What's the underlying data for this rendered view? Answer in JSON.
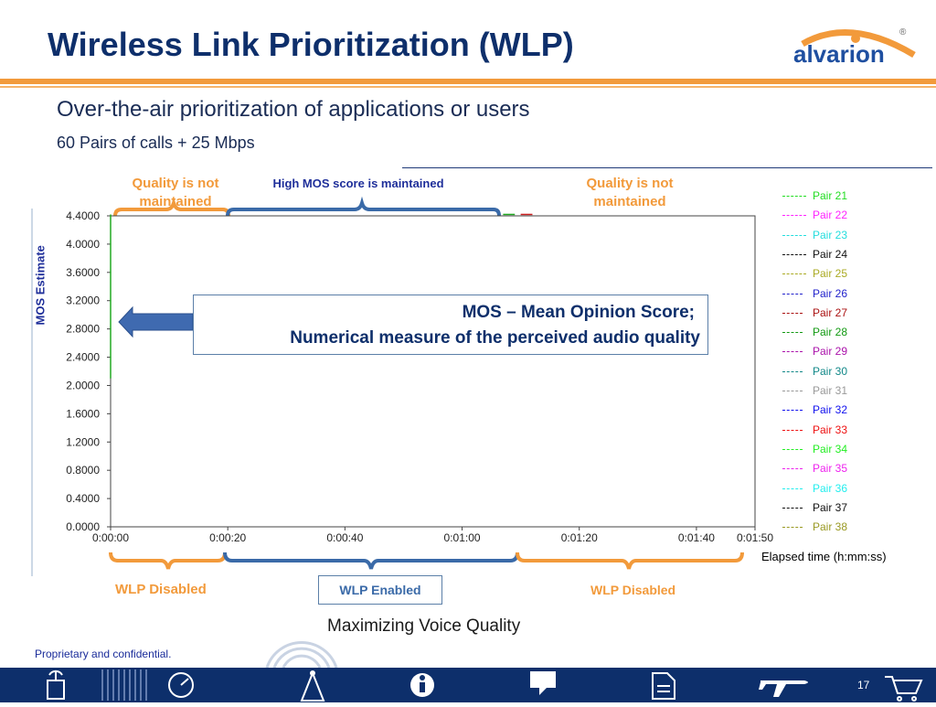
{
  "slide": {
    "title": "Wireless Link Prioritization (WLP)",
    "subtitle": "Over-the-air prioritization of applications or users",
    "subline": "60 Pairs of calls + 25 Mbps",
    "logo_text": "alvarion",
    "logo_mark": "®",
    "caption": "Maximizing Voice Quality",
    "proprietary": "Proprietary and confidential.",
    "page_number": "17",
    "brand_color": "#0e2f6b",
    "accent_color": "#f29a3b"
  },
  "annotations": {
    "quality_left": [
      "Quality is not",
      "maintained"
    ],
    "quality_right": [
      "Quality is not",
      "maintained"
    ],
    "high_mos": "High MOS score is maintained",
    "callout_line1": "MOS – Mean Opinion Score;",
    "callout_line2": "Numerical measure of the perceived audio quality",
    "wlp_disabled_left": "WLP Disabled",
    "wlp_enabled": "WLP Enabled",
    "wlp_disabled_right": "WLP Disabled"
  },
  "footer_icons": [
    "wifi-tower-icon",
    "stripes-icon",
    "gauge-icon",
    "antenna-icon",
    "info-icon",
    "chat-bubble-icon",
    "document-icon",
    "airplane-icon",
    "cart-icon"
  ],
  "chart_data": {
    "type": "line",
    "ylabel": "MOS Estimate",
    "xlabel": "Elapsed time (h:mm:ss)",
    "ylim": [
      0,
      4.4
    ],
    "xlim_seconds": [
      0,
      110
    ],
    "y_ticks": [
      "0.0000",
      "0.4000",
      "0.8000",
      "1.2000",
      "1.6000",
      "2.0000",
      "2.4000",
      "2.8000",
      "3.2000",
      "3.6000",
      "4.0000",
      "4.4000"
    ],
    "x_ticks": [
      "0:00:00",
      "0:00:20",
      "0:00:40",
      "0:01:00",
      "0:01:20",
      "0:01:40",
      "0:01:50"
    ],
    "grid": false,
    "legend_position": "right",
    "series": [
      {
        "name": "Pair 21",
        "color": "#22dd22",
        "dash": "dashed"
      },
      {
        "name": "Pair 22",
        "color": "#ff22ff",
        "dash": "dashed"
      },
      {
        "name": "Pair 23",
        "color": "#22dddd",
        "dash": "dashed"
      },
      {
        "name": "Pair 24",
        "color": "#111111",
        "dash": "dashed"
      },
      {
        "name": "Pair 25",
        "color": "#aaaa22",
        "dash": "dashed"
      },
      {
        "name": "Pair 26",
        "color": "#2222cc",
        "dash": "longdash"
      },
      {
        "name": "Pair 27",
        "color": "#aa1111",
        "dash": "longdash"
      },
      {
        "name": "Pair 28",
        "color": "#119911",
        "dash": "longdash"
      },
      {
        "name": "Pair 29",
        "color": "#aa11aa",
        "dash": "longdash"
      },
      {
        "name": "Pair 30",
        "color": "#118888",
        "dash": "longdash"
      },
      {
        "name": "Pair 31",
        "color": "#999999",
        "dash": "longdash"
      },
      {
        "name": "Pair 32",
        "color": "#1111ee",
        "dash": "longdash"
      },
      {
        "name": "Pair 33",
        "color": "#ee1111",
        "dash": "longdash"
      },
      {
        "name": "Pair 34",
        "color": "#22ee22",
        "dash": "longdash"
      },
      {
        "name": "Pair 35",
        "color": "#ee22ee",
        "dash": "longdash"
      },
      {
        "name": "Pair 36",
        "color": "#22eeee",
        "dash": "longdash"
      },
      {
        "name": "Pair 37",
        "color": "#111111",
        "dash": "longdash"
      },
      {
        "name": "Pair 38",
        "color": "#999922",
        "dash": "longdash"
      }
    ],
    "visible_traces": [
      {
        "color": "#22aa22",
        "points": [
          [
            0,
            2.1
          ],
          [
            0,
            4.42
          ]
        ]
      },
      {
        "color": "#22aa22",
        "points": [
          [
            67,
            4.42
          ],
          [
            69,
            4.42
          ]
        ]
      },
      {
        "color": "#cc2222",
        "points": [
          [
            70,
            4.42
          ],
          [
            72,
            4.42
          ]
        ]
      }
    ]
  }
}
